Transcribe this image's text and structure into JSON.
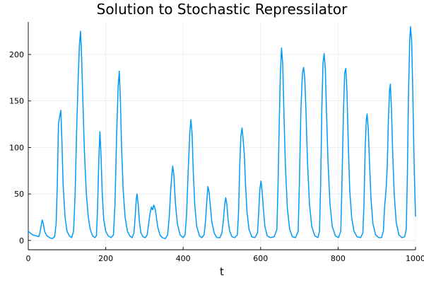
{
  "chart_data": {
    "type": "line",
    "title": "Solution to Stochastic Repressilator",
    "xlabel": "t",
    "ylabel": "",
    "xlim": [
      0,
      1000
    ],
    "ylim": [
      -10,
      235
    ],
    "xticks": [
      0,
      200,
      400,
      600,
      800,
      1000
    ],
    "yticks": [
      0,
      50,
      100,
      150,
      200
    ],
    "grid": true,
    "legend": "none",
    "line_color": "#009AFA",
    "series": [
      {
        "points": [
          [
            0,
            10
          ],
          [
            5,
            8
          ],
          [
            12,
            6
          ],
          [
            20,
            5
          ],
          [
            27,
            4
          ],
          [
            30,
            8
          ],
          [
            33,
            15
          ],
          [
            36,
            22
          ],
          [
            39,
            18
          ],
          [
            42,
            10
          ],
          [
            48,
            5
          ],
          [
            55,
            3
          ],
          [
            62,
            2
          ],
          [
            68,
            4
          ],
          [
            72,
            18
          ],
          [
            75,
            60
          ],
          [
            78,
            125
          ],
          [
            81,
            133
          ],
          [
            84,
            140
          ],
          [
            87,
            105
          ],
          [
            90,
            60
          ],
          [
            95,
            25
          ],
          [
            100,
            10
          ],
          [
            106,
            5
          ],
          [
            112,
            3
          ],
          [
            117,
            10
          ],
          [
            121,
            50
          ],
          [
            125,
            120
          ],
          [
            129,
            175
          ],
          [
            132,
            210
          ],
          [
            135,
            225
          ],
          [
            138,
            195
          ],
          [
            141,
            150
          ],
          [
            145,
            95
          ],
          [
            150,
            50
          ],
          [
            155,
            25
          ],
          [
            160,
            12
          ],
          [
            166,
            5
          ],
          [
            172,
            3
          ],
          [
            176,
            5
          ],
          [
            179,
            35
          ],
          [
            182,
            85
          ],
          [
            185,
            117
          ],
          [
            188,
            90
          ],
          [
            191,
            50
          ],
          [
            195,
            22
          ],
          [
            200,
            10
          ],
          [
            206,
            5
          ],
          [
            214,
            3
          ],
          [
            220,
            6
          ],
          [
            224,
            40
          ],
          [
            228,
            110
          ],
          [
            232,
            165
          ],
          [
            235,
            182
          ],
          [
            238,
            150
          ],
          [
            241,
            100
          ],
          [
            245,
            55
          ],
          [
            250,
            25
          ],
          [
            256,
            10
          ],
          [
            262,
            5
          ],
          [
            268,
            3
          ],
          [
            273,
            8
          ],
          [
            276,
            25
          ],
          [
            279,
            45
          ],
          [
            281,
            50
          ],
          [
            284,
            38
          ],
          [
            287,
            20
          ],
          [
            291,
            8
          ],
          [
            296,
            4
          ],
          [
            302,
            3
          ],
          [
            307,
            6
          ],
          [
            310,
            15
          ],
          [
            314,
            28
          ],
          [
            318,
            36
          ],
          [
            321,
            33
          ],
          [
            324,
            38
          ],
          [
            327,
            35
          ],
          [
            330,
            28
          ],
          [
            334,
            15
          ],
          [
            340,
            6
          ],
          [
            346,
            3
          ],
          [
            354,
            2
          ],
          [
            360,
            6
          ],
          [
            364,
            25
          ],
          [
            368,
            55
          ],
          [
            371,
            72
          ],
          [
            373,
            80
          ],
          [
            376,
            70
          ],
          [
            380,
            40
          ],
          [
            385,
            18
          ],
          [
            392,
            6
          ],
          [
            400,
            3
          ],
          [
            405,
            6
          ],
          [
            409,
            30
          ],
          [
            413,
            75
          ],
          [
            417,
            115
          ],
          [
            420,
            130
          ],
          [
            423,
            115
          ],
          [
            426,
            75
          ],
          [
            430,
            38
          ],
          [
            435,
            15
          ],
          [
            442,
            5
          ],
          [
            448,
            3
          ],
          [
            454,
            6
          ],
          [
            458,
            22
          ],
          [
            461,
            42
          ],
          [
            464,
            58
          ],
          [
            467,
            52
          ],
          [
            470,
            38
          ],
          [
            474,
            20
          ],
          [
            480,
            8
          ],
          [
            487,
            3
          ],
          [
            495,
            3
          ],
          [
            500,
            8
          ],
          [
            504,
            22
          ],
          [
            507,
            38
          ],
          [
            510,
            46
          ],
          [
            513,
            38
          ],
          [
            516,
            22
          ],
          [
            520,
            10
          ],
          [
            526,
            4
          ],
          [
            533,
            3
          ],
          [
            540,
            6
          ],
          [
            543,
            30
          ],
          [
            546,
            80
          ],
          [
            549,
            112
          ],
          [
            552,
            121
          ],
          [
            555,
            108
          ],
          [
            558,
            92
          ],
          [
            561,
            60
          ],
          [
            565,
            30
          ],
          [
            570,
            12
          ],
          [
            577,
            4
          ],
          [
            585,
            3
          ],
          [
            592,
            8
          ],
          [
            595,
            30
          ],
          [
            598,
            55
          ],
          [
            601,
            64
          ],
          [
            604,
            52
          ],
          [
            607,
            35
          ],
          [
            611,
            15
          ],
          [
            617,
            5
          ],
          [
            625,
            3
          ],
          [
            635,
            4
          ],
          [
            642,
            12
          ],
          [
            645,
            60
          ],
          [
            648,
            125
          ],
          [
            651,
            180
          ],
          [
            654,
            207
          ],
          [
            657,
            190
          ],
          [
            660,
            140
          ],
          [
            664,
            80
          ],
          [
            669,
            35
          ],
          [
            675,
            12
          ],
          [
            682,
            4
          ],
          [
            690,
            3
          ],
          [
            697,
            10
          ],
          [
            700,
            60
          ],
          [
            704,
            140
          ],
          [
            708,
            180
          ],
          [
            711,
            186
          ],
          [
            714,
            175
          ],
          [
            717,
            140
          ],
          [
            721,
            85
          ],
          [
            726,
            40
          ],
          [
            732,
            15
          ],
          [
            740,
            5
          ],
          [
            748,
            3
          ],
          [
            752,
            10
          ],
          [
            755,
            60
          ],
          [
            758,
            140
          ],
          [
            761,
            190
          ],
          [
            764,
            201
          ],
          [
            767,
            185
          ],
          [
            770,
            140
          ],
          [
            774,
            85
          ],
          [
            779,
            40
          ],
          [
            785,
            15
          ],
          [
            793,
            5
          ],
          [
            801,
            3
          ],
          [
            807,
            10
          ],
          [
            810,
            60
          ],
          [
            814,
            140
          ],
          [
            817,
            180
          ],
          [
            820,
            185
          ],
          [
            823,
            160
          ],
          [
            826,
            110
          ],
          [
            830,
            55
          ],
          [
            835,
            25
          ],
          [
            841,
            10
          ],
          [
            849,
            4
          ],
          [
            858,
            3
          ],
          [
            864,
            8
          ],
          [
            867,
            40
          ],
          [
            870,
            100
          ],
          [
            873,
            130
          ],
          [
            875,
            136
          ],
          [
            878,
            120
          ],
          [
            881,
            85
          ],
          [
            885,
            45
          ],
          [
            890,
            18
          ],
          [
            897,
            6
          ],
          [
            905,
            3
          ],
          [
            912,
            3
          ],
          [
            917,
            10
          ],
          [
            920,
            35
          ],
          [
            924,
            55
          ],
          [
            927,
            80
          ],
          [
            930,
            130
          ],
          [
            933,
            162
          ],
          [
            935,
            168
          ],
          [
            938,
            140
          ],
          [
            941,
            95
          ],
          [
            945,
            50
          ],
          [
            950,
            20
          ],
          [
            957,
            6
          ],
          [
            965,
            3
          ],
          [
            972,
            4
          ],
          [
            976,
            12
          ],
          [
            979,
            70
          ],
          [
            982,
            160
          ],
          [
            985,
            215
          ],
          [
            987,
            230
          ],
          [
            990,
            215
          ],
          [
            993,
            160
          ],
          [
            996,
            90
          ],
          [
            998,
            55
          ],
          [
            1000,
            26
          ]
        ]
      }
    ]
  }
}
